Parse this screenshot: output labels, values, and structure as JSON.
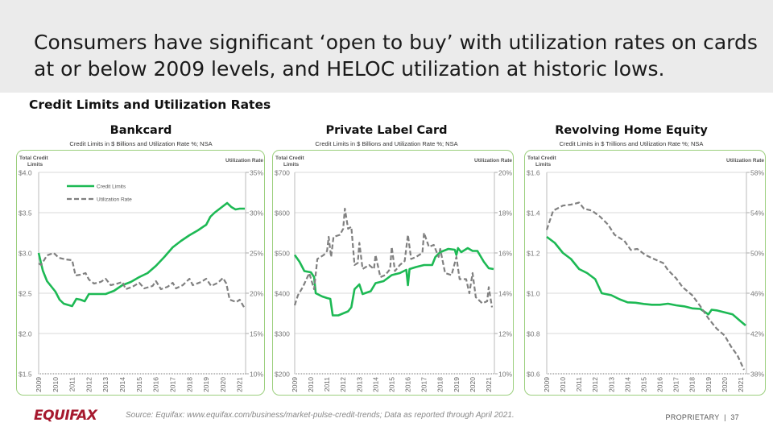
{
  "slide": {
    "headline": "Consumers have significant ‘open to buy’ with utilization rates on cards at or below 2009 levels, and HELOC utilization at historic lows.",
    "section_title": "Credit Limits and Utilization Rates",
    "footer": {
      "logo": "EQUIFAX",
      "source": "Source: Equifax: www.equifax.com/business/market-pulse-credit-trends; Data as reported through April 2021.",
      "proprietary": "PROPRIETARY",
      "separator": "|",
      "page_number": "37"
    }
  },
  "colors": {
    "credit_limits": "#1db954",
    "utilization_rate": "#808080",
    "panel_border": "#9ccf7e",
    "banner": "#ebebeb",
    "logo": "#a6192e"
  },
  "chart_data": [
    {
      "type": "line",
      "title": "Bankcard",
      "subtitle": "Credit Limits in $ Billions and Utilization Rate %; NSA",
      "ylabel_left": "Total Credit Limits",
      "ylabel_right": "Utilization Rate",
      "legend": {
        "placement": "top-left",
        "entries": [
          "Credit Limits",
          "Utilization Rate"
        ]
      },
      "grid": true,
      "xlim": [
        2009,
        2021.35
      ],
      "x_ticks": [
        "2009",
        "2010",
        "2011",
        "2012",
        "2013",
        "2014",
        "2015",
        "2016",
        "2017",
        "2018",
        "2019",
        "2020",
        "2021"
      ],
      "ylim_left": [
        1.5,
        4.0
      ],
      "y_ticks_left": [
        "$1.5",
        "$2.0",
        "$2.5",
        "$3.0",
        "$3.5",
        "$4.0"
      ],
      "ylim_right": [
        10,
        35
      ],
      "y_ticks_right": [
        "10%",
        "15%",
        "20%",
        "25%",
        "30%",
        "35%"
      ],
      "series": [
        {
          "name": "Credit Limits",
          "axis": "left",
          "style": "solid",
          "x": [
            2009,
            2009.25,
            2009.5,
            2010,
            2010.25,
            2010.5,
            2011,
            2011.25,
            2011.5,
            2011.75,
            2012,
            2012.5,
            2013,
            2013.5,
            2014,
            2014.5,
            2015,
            2015.5,
            2016,
            2016.5,
            2017,
            2017.5,
            2018,
            2018.5,
            2019,
            2019.25,
            2019.5,
            2020,
            2020.25,
            2020.5,
            2020.75,
            2021,
            2021.3
          ],
          "y": [
            3.0,
            2.78,
            2.65,
            2.52,
            2.42,
            2.37,
            2.34,
            2.43,
            2.42,
            2.4,
            2.49,
            2.49,
            2.49,
            2.53,
            2.6,
            2.64,
            2.7,
            2.75,
            2.84,
            2.95,
            3.07,
            3.15,
            3.22,
            3.28,
            3.35,
            3.45,
            3.5,
            3.58,
            3.62,
            3.57,
            3.54,
            3.55,
            3.55
          ]
        },
        {
          "name": "Utilization Rate",
          "axis": "right",
          "style": "dashed",
          "x": [
            2009,
            2009.15,
            2009.5,
            2009.9,
            2010.2,
            2010.6,
            2011,
            2011.2,
            2011.5,
            2011.8,
            2012,
            2012.3,
            2012.7,
            2013,
            2013.3,
            2013.7,
            2014,
            2014.2,
            2014.6,
            2015,
            2015.3,
            2015.8,
            2016,
            2016.3,
            2016.7,
            2017,
            2017.2,
            2017.6,
            2018,
            2018.2,
            2018.7,
            2019,
            2019.3,
            2019.7,
            2020,
            2020.2,
            2020.4,
            2020.8,
            2021,
            2021.3
          ],
          "y": [
            23.7,
            23.5,
            24.7,
            25.0,
            24.4,
            24.2,
            24.1,
            22.2,
            22.3,
            22.5,
            21.7,
            21.2,
            21.4,
            21.8,
            21.0,
            21.2,
            21.4,
            20.5,
            20.8,
            21.3,
            20.6,
            20.9,
            21.5,
            20.5,
            20.8,
            21.3,
            20.6,
            21.0,
            21.8,
            21.0,
            21.4,
            21.8,
            20.9,
            21.3,
            21.9,
            21.2,
            19.2,
            18.9,
            19.2,
            18.1
          ]
        }
      ]
    },
    {
      "type": "line",
      "title": "Private Label Card",
      "subtitle": "Credit Limits in $ Billions and Utilization Rate %; NSA",
      "ylabel_left": "Total Credit Limits",
      "ylabel_right": "Utilization Rate",
      "grid": true,
      "xlim": [
        2009,
        2021.35
      ],
      "x_ticks": [
        "2009",
        "2010",
        "2011",
        "2012",
        "2013",
        "2014",
        "2015",
        "2016",
        "2017",
        "2018",
        "2019",
        "2020",
        "2021"
      ],
      "ylim_left": [
        200,
        700
      ],
      "y_ticks_left": [
        "$200",
        "$300",
        "$400",
        "$500",
        "$600",
        "$700"
      ],
      "ylim_right": [
        10,
        20
      ],
      "y_ticks_right": [
        "10%",
        "12%",
        "14%",
        "16%",
        "18%",
        "20%"
      ],
      "series": [
        {
          "name": "Credit Limits",
          "axis": "left",
          "style": "solid",
          "x": [
            2009,
            2009.3,
            2009.6,
            2010,
            2010.2,
            2010.3,
            2010.7,
            2011,
            2011.2,
            2011.35,
            2011.7,
            2012,
            2012.3,
            2012.5,
            2012.7,
            2013,
            2013.2,
            2013.7,
            2014,
            2014.5,
            2015,
            2015.5,
            2015.9,
            2016,
            2016.1,
            2016.5,
            2017,
            2017.5,
            2017.7,
            2018,
            2018.5,
            2018.9,
            2019,
            2019.1,
            2019.3,
            2019.7,
            2020,
            2020.3,
            2020.7,
            2021,
            2021.3
          ],
          "y": [
            495,
            478,
            455,
            452,
            440,
            400,
            392,
            388,
            386,
            345,
            345,
            350,
            355,
            365,
            410,
            422,
            398,
            405,
            425,
            430,
            445,
            450,
            458,
            420,
            460,
            465,
            470,
            470,
            490,
            502,
            510,
            508,
            495,
            512,
            502,
            512,
            505,
            505,
            478,
            462,
            460
          ]
        },
        {
          "name": "Utilization Rate",
          "axis": "right",
          "style": "dashed",
          "x": [
            2009,
            2009.2,
            2009.5,
            2009.9,
            2010.2,
            2010.4,
            2010.8,
            2011,
            2011.1,
            2011.25,
            2011.4,
            2011.8,
            2012,
            2012.1,
            2012.3,
            2012.5,
            2012.7,
            2012.9,
            2013,
            2013.2,
            2013.6,
            2013.9,
            2014,
            2014.3,
            2014.6,
            2014.9,
            2015,
            2015.2,
            2015.5,
            2015.8,
            2016,
            2016.2,
            2016.5,
            2016.9,
            2017,
            2017.3,
            2017.6,
            2017.9,
            2018,
            2018.3,
            2018.7,
            2019,
            2019.2,
            2019.6,
            2019.8,
            2020,
            2020.2,
            2020.6,
            2020.9,
            2021,
            2021.2
          ],
          "y": [
            13.4,
            13.9,
            14.3,
            15.0,
            14.2,
            15.7,
            15.9,
            16.1,
            16.8,
            15.8,
            16.8,
            16.9,
            17.2,
            18.2,
            17.2,
            17.3,
            15.4,
            15.5,
            16.5,
            15.2,
            15.4,
            15.2,
            15.9,
            14.8,
            14.9,
            15.2,
            16.3,
            15.1,
            15.4,
            15.6,
            16.9,
            15.7,
            15.8,
            16.0,
            17.0,
            16.3,
            16.4,
            15.8,
            16.2,
            15.0,
            14.9,
            15.8,
            14.7,
            14.7,
            14.0,
            15.0,
            13.8,
            13.5,
            13.6,
            14.3,
            13.3
          ]
        }
      ]
    },
    {
      "type": "line",
      "title": "Revolving Home Equity",
      "subtitle": "Credit Limits in $ Trillions and Utilization Rate %; NSA",
      "ylabel_left": "Total Credit Limits",
      "ylabel_right": "Utilization Rate",
      "grid": true,
      "xlim": [
        2009,
        2021.35
      ],
      "x_ticks": [
        "2009",
        "2010",
        "2011",
        "2012",
        "2013",
        "2014",
        "2015",
        "2016",
        "2017",
        "2018",
        "2019",
        "2020",
        "2021"
      ],
      "ylim_left": [
        0.6,
        1.6
      ],
      "y_ticks_left": [
        "$0.6",
        "$0.8",
        "$1.0",
        "$1.2",
        "$1.4",
        "$1.6"
      ],
      "ylim_right": [
        38,
        58
      ],
      "y_ticks_right": [
        "38%",
        "42%",
        "46%",
        "50%",
        "54%",
        "58%"
      ],
      "series": [
        {
          "name": "Credit Limits",
          "axis": "left",
          "style": "solid",
          "x": [
            2009,
            2009.5,
            2010,
            2010.5,
            2011,
            2011.5,
            2012,
            2012.4,
            2013,
            2013.5,
            2014,
            2014.5,
            2015,
            2015.5,
            2016,
            2016.5,
            2017,
            2017.5,
            2018,
            2018.5,
            2019,
            2019.2,
            2019.5,
            2020,
            2020.5,
            2021,
            2021.3
          ],
          "y": [
            1.28,
            1.25,
            1.2,
            1.17,
            1.12,
            1.1,
            1.07,
            1.0,
            0.99,
            0.97,
            0.955,
            0.953,
            0.947,
            0.943,
            0.943,
            0.948,
            0.94,
            0.935,
            0.925,
            0.922,
            0.895,
            0.918,
            0.915,
            0.905,
            0.895,
            0.86,
            0.84
          ]
        },
        {
          "name": "Utilization Rate",
          "axis": "right",
          "style": "dashed",
          "x": [
            2009,
            2009.4,
            2010,
            2010.5,
            2011,
            2011.3,
            2011.8,
            2012.3,
            2012.8,
            2013.2,
            2013.8,
            2014.2,
            2014.6,
            2015.1,
            2015.5,
            2016.2,
            2016.5,
            2017,
            2017.4,
            2018,
            2018.5,
            2019,
            2019.5,
            2020,
            2020.4,
            2020.8,
            2021.2
          ],
          "y": [
            52.3,
            54.2,
            54.7,
            54.8,
            55.0,
            54.4,
            54.2,
            53.6,
            52.8,
            51.8,
            51.2,
            50.3,
            50.4,
            49.8,
            49.5,
            49.0,
            48.3,
            47.5,
            46.6,
            45.8,
            44.7,
            43.5,
            42.5,
            41.8,
            40.7,
            39.8,
            38.4
          ]
        }
      ]
    }
  ]
}
